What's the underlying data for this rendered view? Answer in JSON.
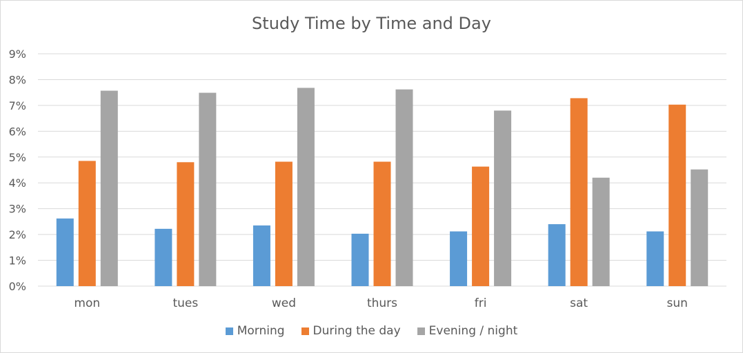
{
  "chart_data": {
    "type": "bar",
    "title": "Study Time by Time and Day",
    "categories": [
      "mon",
      "tues",
      "wed",
      "thurs",
      "fri",
      "sat",
      "sun"
    ],
    "series": [
      {
        "name": "Morning",
        "color": "#5b9bd5",
        "values": [
          2.62,
          2.22,
          2.35,
          2.03,
          2.12,
          2.4,
          2.12
        ]
      },
      {
        "name": "During the day",
        "color": "#ed7d31",
        "values": [
          4.85,
          4.8,
          4.82,
          4.82,
          4.63,
          7.28,
          7.03
        ]
      },
      {
        "name": "Evening / night",
        "color": "#a5a5a5",
        "values": [
          7.57,
          7.49,
          7.68,
          7.62,
          6.8,
          4.2,
          4.52
        ]
      }
    ],
    "ylim": [
      0,
      9
    ],
    "yticks": [
      "0%",
      "1%",
      "2%",
      "3%",
      "4%",
      "5%",
      "6%",
      "7%",
      "8%",
      "9%"
    ],
    "grid": true,
    "legend": "bottom"
  }
}
